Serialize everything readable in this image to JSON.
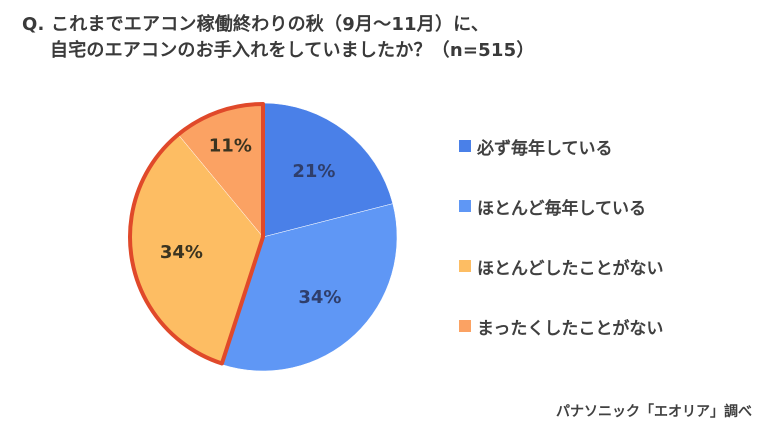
{
  "title": {
    "line1": "Q. これまでエアコン稼働終わりの秋（9月〜11月）に、",
    "line2": "自宅のエアコンのお手入れをしていましたか？（n=515）"
  },
  "legend": [
    {
      "label": "必ず毎年している",
      "color": "#4a80e8"
    },
    {
      "label": "ほとんど毎年している",
      "color": "#5f97f5"
    },
    {
      "label": "ほとんどしたことがない",
      "color": "#fdbd63"
    },
    {
      "label": "まったくしたことがない",
      "color": "#fba263"
    }
  ],
  "source": "パナソニック「エオリア」調べ",
  "highlight_color": "#e0492a",
  "chart_data": {
    "type": "pie",
    "title": "Q. これまでエアコン稼働終わりの秋（9月〜11月）に、自宅のエアコンのお手入れをしていましたか？（n=515）",
    "categories": [
      "必ず毎年している",
      "ほとんど毎年している",
      "ほとんどしたことがない",
      "まったくしたことがない"
    ],
    "values": [
      21,
      34,
      34,
      11
    ],
    "labels": [
      "21%",
      "34%",
      "34%",
      "11%"
    ],
    "colors": [
      "#4a80e8",
      "#5f97f5",
      "#fdbd63",
      "#fba263"
    ],
    "start_angle": "12 o'clock, clockwise",
    "highlighted_group": [
      "ほとんどしたことがない",
      "まったくしたことがない"
    ],
    "highlight_outline_color": "#e0492a",
    "legend_position": "right",
    "n": 515
  }
}
